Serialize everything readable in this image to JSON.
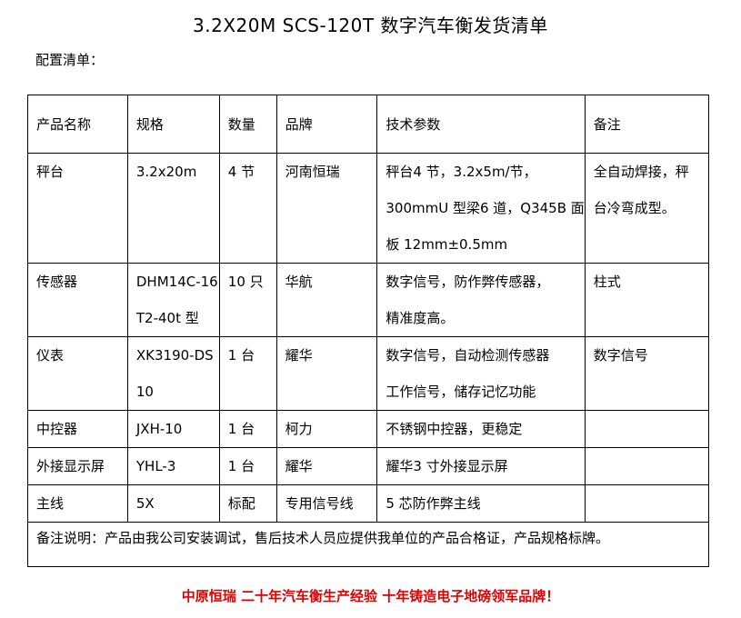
{
  "title": "3.2X20M SCS-120T 数字汽车衡发货清单",
  "subtitle": "配置清单：",
  "headers": [
    "产品名称",
    "规格",
    "数量",
    "品牌",
    "技术参数",
    "备注"
  ],
  "rows": [
    [
      [
        "秤台"
      ],
      [
        "3.2x20m"
      ],
      [
        "4 节"
      ],
      [
        "河南恒瑞"
      ],
      [
        "秤台4 节，3.2x5m/节，",
        "300mmU 型梁6 道，Q345B 面",
        "板 12mm±0.5mm"
      ],
      [
        "全自动焊接，秤",
        "台冷弯成型。"
      ]
    ],
    [
      [
        "传感器"
      ],
      [
        "DHM14C-16",
        "T2-40t 型"
      ],
      [
        "10 只"
      ],
      [
        "华航"
      ],
      [
        "数字信号，防作弊传感器，",
        "精准度高。"
      ],
      [
        "柱式"
      ]
    ],
    [
      [
        "仪表"
      ],
      [
        "XK3190-DS",
        "10"
      ],
      [
        "1 台"
      ],
      [
        "耀华"
      ],
      [
        "数字信号，自动检测传感器",
        "工作信号，储存记忆功能"
      ],
      [
        "数字信号"
      ]
    ],
    [
      [
        "中控器"
      ],
      [
        "JXH-10"
      ],
      [
        "1 台"
      ],
      [
        "柯力"
      ],
      [
        "不锈钢中控器，更稳定"
      ],
      [
        ""
      ]
    ],
    [
      [
        "外接显示屏"
      ],
      [
        "YHL-3"
      ],
      [
        "1 台"
      ],
      [
        "耀华"
      ],
      [
        "耀华3 寸外接显示屏"
      ],
      [
        ""
      ]
    ],
    [
      [
        "主线"
      ],
      [
        "5X"
      ],
      [
        "标配"
      ],
      [
        "专用信号线"
      ],
      [
        "5 芯防作弊主线"
      ],
      [
        ""
      ]
    ]
  ],
  "note": "备注说明：产品由我公司安装调试，售后技术人员应提供我单位的产品合格证，产品规格标牌。",
  "footer": "中原恒瑞 二十年汽车衡生产经验 十年铸造电子地磅领军品牌！"
}
